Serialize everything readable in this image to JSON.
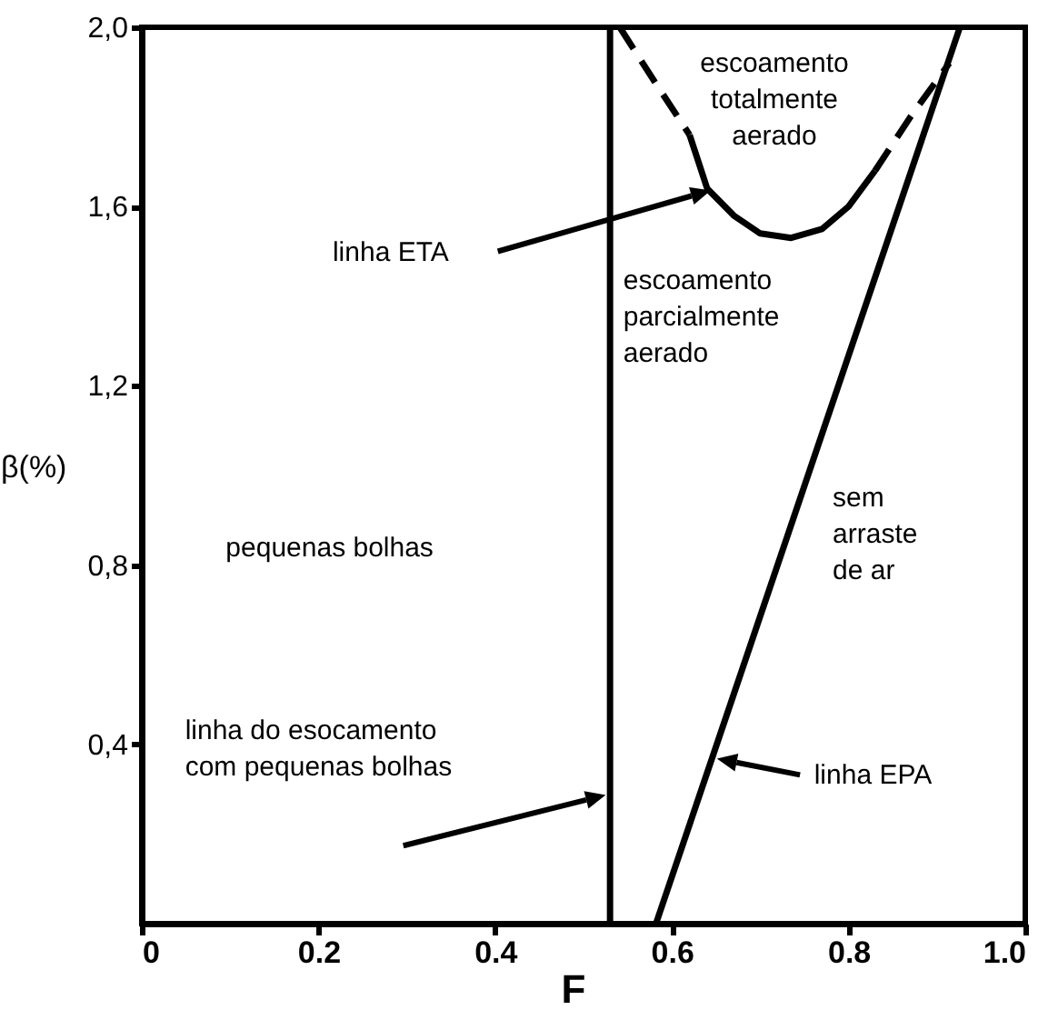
{
  "chart_data": {
    "type": "line",
    "xlabel": "F",
    "ylabel": "β(%)",
    "xlim": [
      0,
      1.0
    ],
    "xticks": [
      0,
      0.2,
      0.4,
      0.6,
      0.8,
      {
        "value": 1.0,
        "label": "1.0"
      }
    ],
    "ylim": [
      0,
      2.0
    ],
    "yticks": [
      {
        "value": 0.4,
        "label": "0,4"
      },
      {
        "value": 0.8,
        "label": "0,8"
      },
      {
        "value": 1.2,
        "label": "1,2"
      },
      {
        "value": 1.6,
        "label": "1,6"
      },
      {
        "value": 2.0,
        "label": "2,0"
      }
    ],
    "marker": "none",
    "series": [
      {
        "color": "#000000",
        "line_style": "solid",
        "x": [
          0.582,
          0.926
        ],
        "values": [
          0,
          2.0
        ]
      },
      {
        "color": "#000000",
        "line_style": "solid",
        "x": [
          0.62,
          0.64,
          0.67,
          0.7,
          0.735,
          0.77,
          0.8,
          0.83
        ],
        "values": [
          1.76,
          1.64,
          1.58,
          1.54,
          1.53,
          1.55,
          1.6,
          1.68
        ]
      },
      {
        "color": "#000000",
        "line_style": "dashed",
        "x": [
          0.541,
          0.58,
          0.62
        ],
        "values": [
          2.0,
          1.88,
          1.76
        ]
      },
      {
        "color": "#000000",
        "line_style": "dashed",
        "x": [
          0.83,
          0.87,
          0.914
        ],
        "values": [
          1.68,
          1.8,
          1.92
        ]
      }
    ],
    "ref_lines": [
      {
        "axis": "x",
        "value": 0.53,
        "color": "#000000",
        "line_style": "solid"
      }
    ],
    "annotations": [
      "escoamento\ntotalmente\naerado",
      "linha ETA",
      "escoamento\nparcialmente\naerado",
      "sem\narraste\nde ar",
      "pequenas bolhas",
      "linha do esocamento\ncom pequenas bolhas",
      "linha EPA"
    ]
  }
}
